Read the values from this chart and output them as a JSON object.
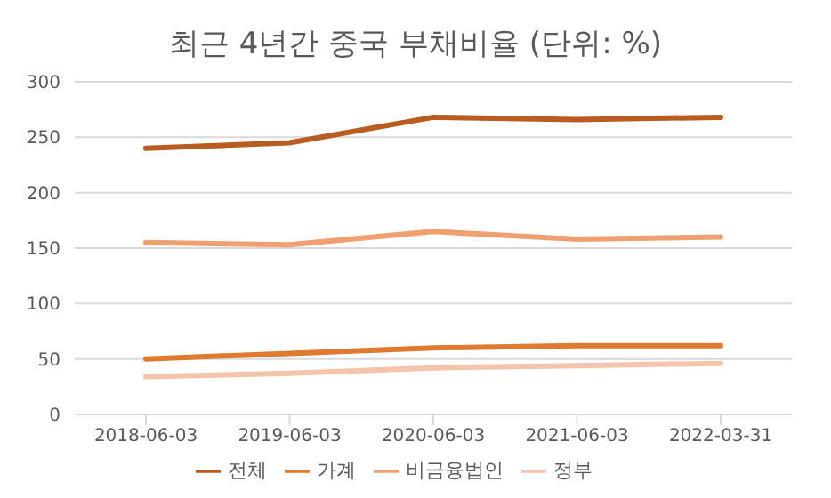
{
  "chart_data": {
    "type": "line",
    "title": "최근 4년간 중국 부채비율 (단위: %)",
    "categories": [
      "2018-06-03",
      "2019-06-03",
      "2020-06-03",
      "2021-06-03",
      "2022-03-31"
    ],
    "series": [
      {
        "name": "전체",
        "color": "#b85c22",
        "values": [
          240,
          245,
          268,
          266,
          268
        ]
      },
      {
        "name": "가계",
        "color": "#e07a30",
        "values": [
          50,
          55,
          60,
          62,
          62
        ]
      },
      {
        "name": "비금융법인",
        "color": "#f0a070",
        "values": [
          155,
          153,
          165,
          158,
          160
        ]
      },
      {
        "name": "정부",
        "color": "#f5c4aa",
        "values": [
          34,
          37,
          42,
          44,
          46
        ]
      }
    ],
    "ylim": [
      0,
      300
    ],
    "yticks": [
      0,
      50,
      100,
      150,
      200,
      250,
      300
    ],
    "grid": "y",
    "legend": "bottom",
    "marker": "none",
    "line_style": "solid"
  }
}
